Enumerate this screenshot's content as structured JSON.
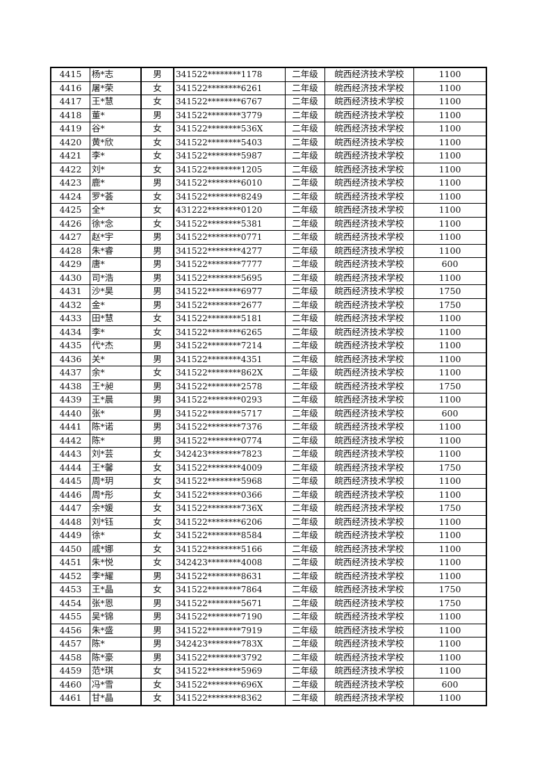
{
  "table": {
    "rows": [
      [
        "4415",
        "杨*志",
        "男",
        "341522********1178",
        "二年级",
        "皖西经济技术学校",
        "1100"
      ],
      [
        "4416",
        "屠*荣",
        "女",
        "341522********6261",
        "二年级",
        "皖西经济技术学校",
        "1100"
      ],
      [
        "4417",
        "王*慧",
        "女",
        "341522********6767",
        "二年级",
        "皖西经济技术学校",
        "1100"
      ],
      [
        "4418",
        "董*",
        "男",
        "341522********3779",
        "二年级",
        "皖西经济技术学校",
        "1100"
      ],
      [
        "4419",
        "谷*",
        "女",
        "341522********536X",
        "二年级",
        "皖西经济技术学校",
        "1100"
      ],
      [
        "4420",
        "黄*欣",
        "女",
        "341522********5403",
        "二年级",
        "皖西经济技术学校",
        "1100"
      ],
      [
        "4421",
        "李*",
        "女",
        "341522********5987",
        "二年级",
        "皖西经济技术学校",
        "1100"
      ],
      [
        "4422",
        "刘*",
        "女",
        "341522********1205",
        "二年级",
        "皖西经济技术学校",
        "1100"
      ],
      [
        "4423",
        "鹿*",
        "男",
        "341522********6010",
        "二年级",
        "皖西经济技术学校",
        "1100"
      ],
      [
        "4424",
        "罗*荟",
        "女",
        "341522********8249",
        "二年级",
        "皖西经济技术学校",
        "1100"
      ],
      [
        "4425",
        "全*",
        "女",
        "431222********0120",
        "二年级",
        "皖西经济技术学校",
        "1100"
      ],
      [
        "4426",
        "徐*念",
        "女",
        "341522********5381",
        "二年级",
        "皖西经济技术学校",
        "1100"
      ],
      [
        "4427",
        "赵*宇",
        "男",
        "341522********0771",
        "二年级",
        "皖西经济技术学校",
        "1100"
      ],
      [
        "4428",
        "朱*睿",
        "男",
        "341522********4277",
        "二年级",
        "皖西经济技术学校",
        "1100"
      ],
      [
        "4429",
        "唐*",
        "男",
        "341522********7777",
        "二年级",
        "皖西经济技术学校",
        "600"
      ],
      [
        "4430",
        "司*浩",
        "男",
        "341522********5695",
        "二年级",
        "皖西经济技术学校",
        "1100"
      ],
      [
        "4431",
        "沙*昊",
        "男",
        "341522********6977",
        "二年级",
        "皖西经济技术学校",
        "1750"
      ],
      [
        "4432",
        "金*",
        "男",
        "341522********2677",
        "二年级",
        "皖西经济技术学校",
        "1750"
      ],
      [
        "4433",
        "田*慧",
        "女",
        "341522********5181",
        "二年级",
        "皖西经济技术学校",
        "1100"
      ],
      [
        "4434",
        "李*",
        "女",
        "341522********6265",
        "二年级",
        "皖西经济技术学校",
        "1100"
      ],
      [
        "4435",
        "代*杰",
        "男",
        "341522********7214",
        "二年级",
        "皖西经济技术学校",
        "1100"
      ],
      [
        "4436",
        "关*",
        "男",
        "341522********4351",
        "二年级",
        "皖西经济技术学校",
        "1100"
      ],
      [
        "4437",
        "余*",
        "女",
        "341522********862X",
        "二年级",
        "皖西经济技术学校",
        "1100"
      ],
      [
        "4438",
        "王*昶",
        "男",
        "341522********2578",
        "二年级",
        "皖西经济技术学校",
        "1750"
      ],
      [
        "4439",
        "王*晨",
        "男",
        "341522********0293",
        "二年级",
        "皖西经济技术学校",
        "1100"
      ],
      [
        "4440",
        "张*",
        "男",
        "341522********5717",
        "二年级",
        "皖西经济技术学校",
        "600"
      ],
      [
        "4441",
        "陈*诺",
        "男",
        "341522********7376",
        "二年级",
        "皖西经济技术学校",
        "1100"
      ],
      [
        "4442",
        "陈*",
        "男",
        "341522********0774",
        "二年级",
        "皖西经济技术学校",
        "1100"
      ],
      [
        "4443",
        "刘*芸",
        "女",
        "342423********7823",
        "二年级",
        "皖西经济技术学校",
        "1100"
      ],
      [
        "4444",
        "王*馨",
        "女",
        "341522********4009",
        "二年级",
        "皖西经济技术学校",
        "1750"
      ],
      [
        "4445",
        "周*玥",
        "女",
        "341522********5968",
        "二年级",
        "皖西经济技术学校",
        "1100"
      ],
      [
        "4446",
        "周*彤",
        "女",
        "341522********0366",
        "二年级",
        "皖西经济技术学校",
        "1100"
      ],
      [
        "4447",
        "余*媛",
        "女",
        "341522********736X",
        "二年级",
        "皖西经济技术学校",
        "1750"
      ],
      [
        "4448",
        "刘*钰",
        "女",
        "341522********6206",
        "二年级",
        "皖西经济技术学校",
        "1100"
      ],
      [
        "4449",
        "徐*",
        "女",
        "341522********8584",
        "二年级",
        "皖西经济技术学校",
        "1100"
      ],
      [
        "4450",
        "戚*娜",
        "女",
        "341522********5166",
        "二年级",
        "皖西经济技术学校",
        "1100"
      ],
      [
        "4451",
        "朱*悦",
        "女",
        "342423********4008",
        "二年级",
        "皖西经济技术学校",
        "1100"
      ],
      [
        "4452",
        "李*耀",
        "男",
        "341522********8631",
        "二年级",
        "皖西经济技术学校",
        "1100"
      ],
      [
        "4453",
        "王*晶",
        "女",
        "341522********7864",
        "二年级",
        "皖西经济技术学校",
        "1750"
      ],
      [
        "4454",
        "张*恩",
        "男",
        "341522********5671",
        "二年级",
        "皖西经济技术学校",
        "1750"
      ],
      [
        "4455",
        "吴*锦",
        "男",
        "341522********7190",
        "二年级",
        "皖西经济技术学校",
        "1100"
      ],
      [
        "4456",
        "朱*盛",
        "男",
        "341522********7919",
        "二年级",
        "皖西经济技术学校",
        "1100"
      ],
      [
        "4457",
        "陈*",
        "男",
        "342423********783X",
        "二年级",
        "皖西经济技术学校",
        "1100"
      ],
      [
        "4458",
        "陈*豪",
        "男",
        "341522********3792",
        "二年级",
        "皖西经济技术学校",
        "1100"
      ],
      [
        "4459",
        "范*琪",
        "女",
        "341522********5969",
        "二年级",
        "皖西经济技术学校",
        "1100"
      ],
      [
        "4460",
        "冯*雪",
        "女",
        "341522********696X",
        "二年级",
        "皖西经济技术学校",
        "600"
      ],
      [
        "4461",
        "甘*晶",
        "女",
        "341522********8362",
        "二年级",
        "皖西经济技术学校",
        "1100"
      ]
    ]
  }
}
